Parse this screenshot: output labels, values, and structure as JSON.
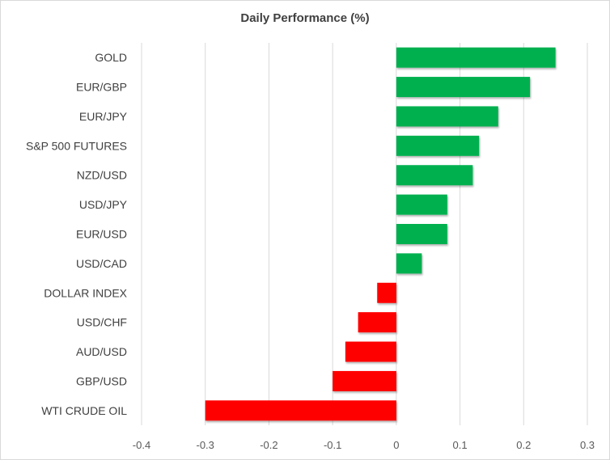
{
  "chart_data": {
    "type": "bar",
    "orientation": "horizontal",
    "title": "Daily Performance (%)",
    "xlabel": "",
    "ylabel": "",
    "categories": [
      "GOLD",
      "EUR/GBP",
      "EUR/JPY",
      "S&P 500 FUTURES",
      "NZD/USD",
      "USD/JPY",
      "EUR/USD",
      "USD/CAD",
      "DOLLAR INDEX",
      "USD/CHF",
      "AUD/USD",
      "GBP/USD",
      "WTI CRUDE OIL"
    ],
    "values": [
      0.25,
      0.21,
      0.16,
      0.13,
      0.12,
      0.08,
      0.08,
      0.04,
      -0.03,
      -0.06,
      -0.08,
      -0.1,
      -0.3
    ],
    "xlim": [
      -0.4,
      0.3
    ],
    "xticks": [
      "-0.4",
      "-0.3",
      "-0.2",
      "-0.1",
      "0",
      "0.1",
      "0.2",
      "0.3"
    ],
    "grid": "vertical",
    "legend": "none",
    "colors": {
      "positive": "#00b050",
      "negative": "#ff0000",
      "grid": "#d9d9d9"
    }
  }
}
